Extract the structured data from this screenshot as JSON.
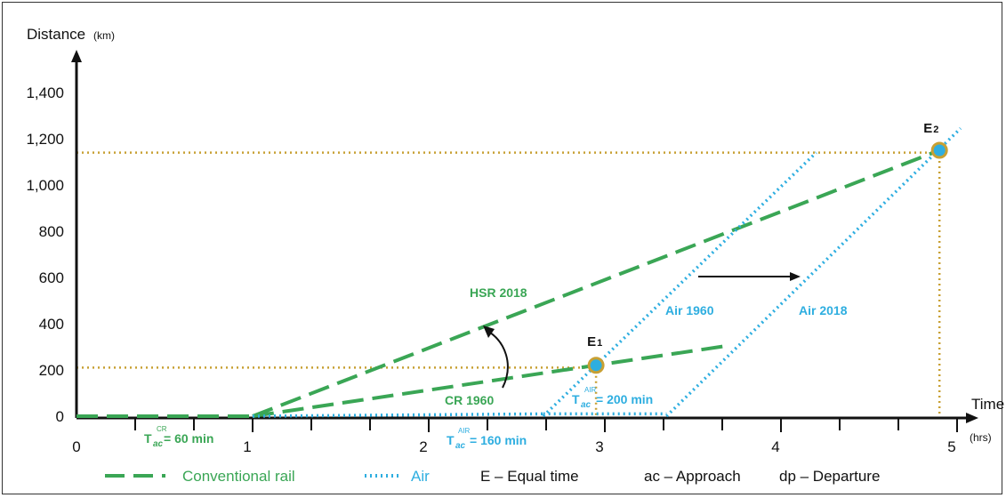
{
  "chart_data": {
    "type": "line",
    "y_axis": {
      "title": "Distance",
      "unit": "(km)",
      "range": [
        0,
        1400
      ],
      "ticks": [
        "0",
        "200",
        "400",
        "600",
        "800",
        "1,000",
        "1,200",
        "1,400"
      ]
    },
    "x_axis": {
      "title": "Time",
      "unit": "(hrs)",
      "range": [
        0,
        5
      ],
      "ticks": [
        "0",
        "1",
        "2",
        "3",
        "4",
        "5"
      ]
    },
    "series": [
      {
        "kind": "rail",
        "x": [
          0,
          1
        ],
        "y": [
          0,
          0
        ]
      },
      {
        "name": "HSR 2018",
        "kind": "rail",
        "x": [
          1,
          4.9
        ],
        "y": [
          0,
          1150
        ]
      },
      {
        "name": "CR 1960",
        "kind": "rail",
        "x": [
          1,
          3.7
        ],
        "y": [
          0,
          305
        ]
      },
      {
        "kind": "air",
        "x": [
          1,
          2.65
        ],
        "y": [
          0,
          10
        ]
      },
      {
        "name": "Air 1960",
        "kind": "air",
        "x": [
          2.65,
          4.2
        ],
        "y": [
          0,
          1140
        ]
      },
      {
        "kind": "air",
        "x": [
          2.65,
          3.35
        ],
        "y": [
          10,
          10
        ]
      },
      {
        "name": "Air 2018",
        "kind": "air",
        "x": [
          3.35,
          5.02
        ],
        "y": [
          0,
          1245
        ]
      }
    ],
    "points": [
      {
        "label": "E",
        "sub": "1",
        "x": 2.95,
        "y": 220
      },
      {
        "label": "E",
        "sub": "2",
        "x": 4.9,
        "y": 1150
      }
    ],
    "reference_lines": {
      "E1_y": 210,
      "E2_y": 1140
    },
    "annotations": {
      "hsr": "HSR 2018",
      "cr": "CR  1960",
      "air1960": "Air 1960",
      "air2018": "Air 2018",
      "tac_cr": {
        "main": "T",
        "sub": "ac",
        "sup": "CR",
        "rest": "= 60 min"
      },
      "tac_air160": {
        "main": "T",
        "sub": "ac",
        "sup": "AIR",
        "rest": "= 160 min"
      },
      "tac_air200": {
        "main": "T",
        "sub": "ac",
        "sup": "AIR",
        "rest": "= 200 min"
      }
    },
    "legend": {
      "placement": "bottom",
      "items": [
        "Conventional rail",
        "Air",
        "E – Equal time",
        "ac – Approach",
        "dp – Departure"
      ]
    },
    "colors": {
      "rail": "#3aa655",
      "air": "#2eaee0",
      "reference": "#c8a033",
      "point": "#2eaee0"
    }
  }
}
